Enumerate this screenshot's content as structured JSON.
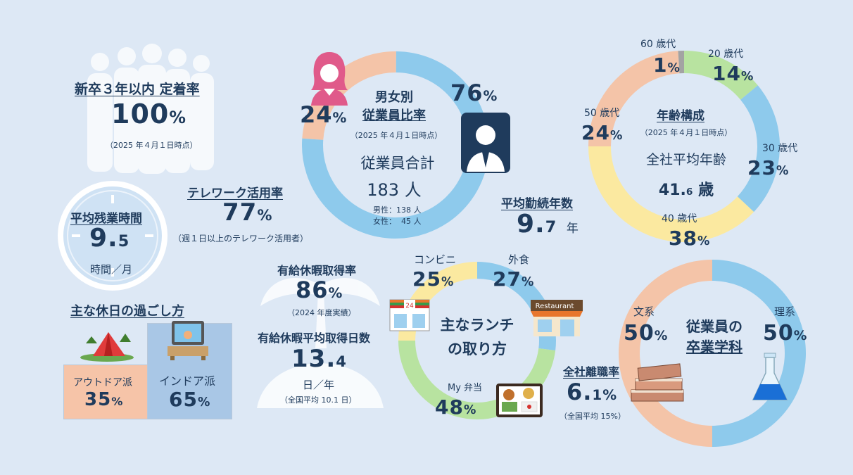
{
  "retention": {
    "title": "新卒３年以内 定着率",
    "value": "100",
    "unit": "%",
    "note": "（2025 年４月１日時点）"
  },
  "overtime": {
    "title": "平均残業時間",
    "value_int": "9.",
    "value_dec": "5",
    "unit": "時間／月"
  },
  "telework": {
    "title": "テレワーク活用率",
    "value": "77",
    "unit": "%",
    "note": "（週１日以上のテレワーク活用者）"
  },
  "holiday": {
    "title": "主な休日の過ごし方",
    "outdoor": {
      "label": "アウトドア派",
      "value": "35",
      "unit": "%"
    },
    "indoor": {
      "label": "インドア派",
      "value": "65",
      "unit": "%"
    }
  },
  "gender": {
    "title_line1": "男女別",
    "title_line2": "従業員比率",
    "note": "（2025 年４月１日時点）",
    "female_pct": "24",
    "male_pct": "76",
    "unit": "%",
    "total_label": "従業員合計",
    "total_value": "183",
    "total_unit": "人",
    "male_line": "男性：138 人",
    "female_line": "女性：  45 人",
    "female_color": "#f4c4a8",
    "male_color": "#8ecaec"
  },
  "tenure": {
    "title": "平均勤続年数",
    "value_int": "9.",
    "value_dec": "7",
    "unit": "年"
  },
  "paid_leave": {
    "title": "有給休暇取得率",
    "value": "86",
    "unit": "%",
    "note": "（2024 年度実績）",
    "days_title": "有給休暇平均取得日数",
    "days_int": "13.",
    "days_dec": "4",
    "days_unit": "日／年",
    "days_note": "（全国平均 10.1 日）"
  },
  "lunch": {
    "title_line1": "主なランチ",
    "title_line2": "の取り方",
    "conv_label": "コンビニ",
    "conv_pct": "25",
    "eatout_label": "外食",
    "eatout_pct": "27",
    "bento_label": "My 弁当",
    "bento_pct": "48",
    "unit": "%",
    "restaurant_sign": "Restaurant",
    "conv_sign": "24"
  },
  "turnover": {
    "title": "全社離職率",
    "value_int": "6.",
    "value_dec": "1",
    "unit": "%",
    "note": "（全国平均 15%）"
  },
  "age": {
    "title": "年齢構成",
    "note": "（2025 年４月１日時点）",
    "avg_label": "全社平均年齢",
    "avg_int": "41.",
    "avg_dec": "6",
    "avg_unit": "歳",
    "s60_label": "60 歳代",
    "s60_pct": "1",
    "s20_label": "20 歳代",
    "s20_pct": "14",
    "s30_label": "30 歳代",
    "s30_pct": "23",
    "s40_label": "40 歳代",
    "s40_pct": "38",
    "s50_label": "50 歳代",
    "s50_pct": "24",
    "unit": "%"
  },
  "major": {
    "title_line1": "従業員の",
    "title_line2": "卒業学科",
    "arts_label": "文系",
    "arts_pct": "50",
    "sci_label": "理系",
    "sci_pct": "50",
    "unit": "%"
  },
  "chart_data": [
    {
      "type": "pie",
      "title": "男女別 従業員比率",
      "categories": [
        "女性",
        "男性"
      ],
      "values": [
        24,
        76
      ]
    },
    {
      "type": "pie",
      "title": "年齢構成",
      "categories": [
        "20 歳代",
        "30 歳代",
        "40 歳代",
        "50 歳代",
        "60 歳代"
      ],
      "values": [
        14,
        23,
        38,
        24,
        1
      ]
    },
    {
      "type": "pie",
      "title": "主なランチの取り方",
      "categories": [
        "外食",
        "My 弁当",
        "コンビニ"
      ],
      "values": [
        27,
        48,
        25
      ]
    },
    {
      "type": "pie",
      "title": "従業員の卒業学科",
      "categories": [
        "理系",
        "文系"
      ],
      "values": [
        50,
        50
      ]
    }
  ]
}
